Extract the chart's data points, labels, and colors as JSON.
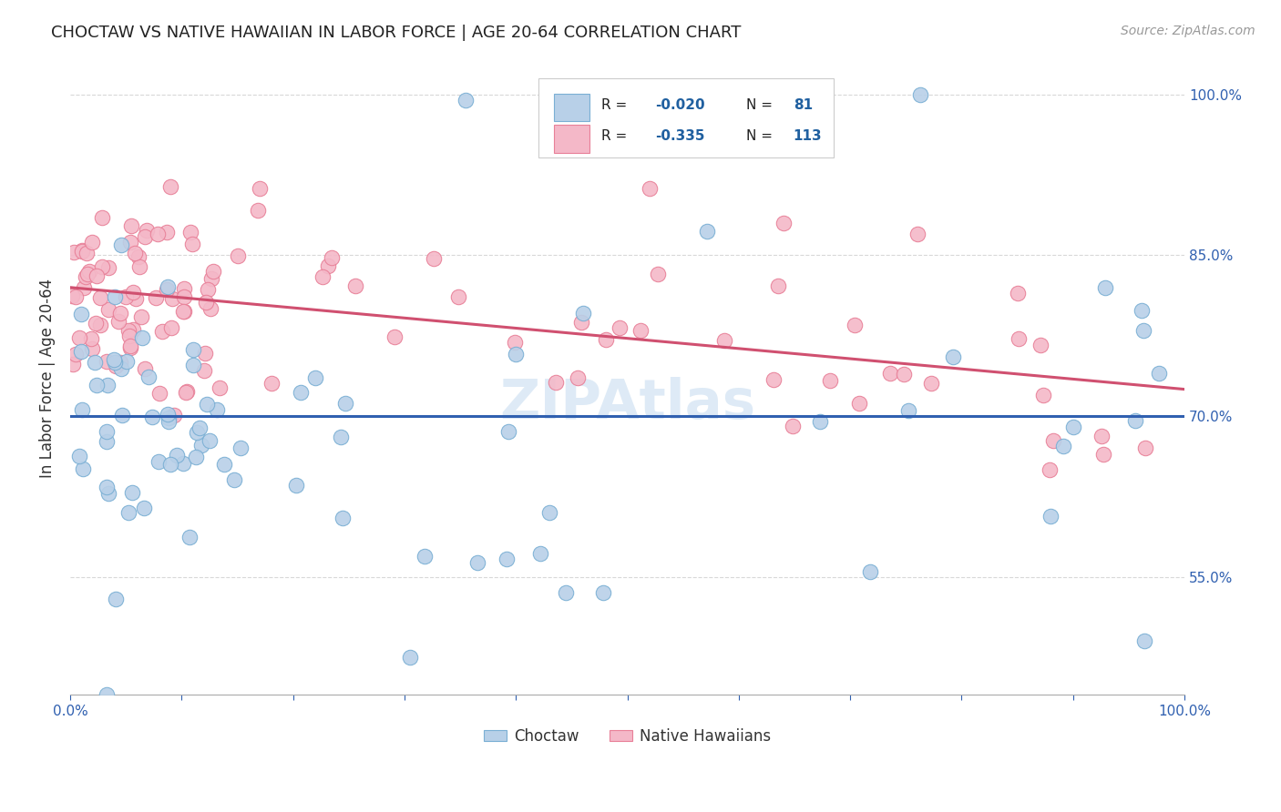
{
  "title": "CHOCTAW VS NATIVE HAWAIIAN IN LABOR FORCE | AGE 20-64 CORRELATION CHART",
  "source": "Source: ZipAtlas.com",
  "ylabel": "In Labor Force | Age 20-64",
  "xlim": [
    0.0,
    1.0
  ],
  "ylim": [
    0.44,
    1.03
  ],
  "yticks": [
    0.55,
    0.7,
    0.85,
    1.0
  ],
  "yticklabels": [
    "55.0%",
    "70.0%",
    "85.0%",
    "100.0%"
  ],
  "choctaw_color": "#b8d0e8",
  "choctaw_edge": "#7aafd4",
  "native_hawaiian_color": "#f4b8c8",
  "native_hawaiian_edge": "#e88098",
  "choctaw_line_color": "#3060b0",
  "native_hawaiian_line_color": "#d05070",
  "R_choctaw": -0.02,
  "N_choctaw": 81,
  "R_native": -0.335,
  "N_native": 113,
  "legend_value_color": "#2060a0",
  "legend_N_color": "#2060a0",
  "watermark_color": "#c8ddf0",
  "axis_label_color": "#3060b0",
  "grid_color": "#d8d8d8",
  "choctaw_line_y0": 0.7,
  "choctaw_line_y1": 0.7,
  "native_line_y0": 0.82,
  "native_line_y1": 0.725
}
